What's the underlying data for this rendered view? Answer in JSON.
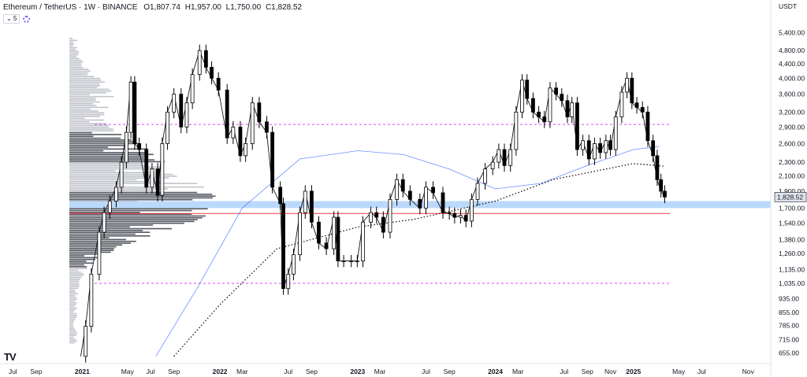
{
  "header": {
    "symbol": "Ethereum / TetherUS · 1W · BINANCE",
    "open_label": "O",
    "open": "1,807.74",
    "high_label": "H",
    "high": "1,957.00",
    "low_label": "L",
    "low": "1,750.00",
    "close_label": "C",
    "close": "1,828.52"
  },
  "controls": {
    "collapse_icon": "chevron-down-icon",
    "indicator_count": "5",
    "settings_icon": "gear-icon"
  },
  "logo": {
    "text": "TV"
  },
  "chart_data": {
    "type": "candlestick",
    "currency": "USDT",
    "last_price": "1,828.52",
    "y_scale": "log",
    "y_ticks": [
      "5,400.00",
      "4,800.00",
      "4,400.00",
      "4,000.00",
      "3,600.00",
      "3,200.00",
      "2,900.00",
      "2,600.00",
      "2,300.00",
      "2,100.00",
      "1,900.00",
      "1,700.00",
      "1,540.00",
      "1,380.00",
      "1,260.00",
      "1,135.00",
      "1,035.00",
      "935.00",
      "855.00",
      "785.00",
      "715.00",
      "655.00"
    ],
    "y_tick_values": [
      5400,
      4800,
      4400,
      4000,
      3600,
      3200,
      2900,
      2600,
      2300,
      2100,
      1900,
      1700,
      1540,
      1380,
      1260,
      1135,
      1035,
      935,
      855,
      785,
      715,
      655
    ],
    "ylim": [
      610,
      6100
    ],
    "x_ticks": [
      {
        "label": "Jul",
        "date": "2020-07-01",
        "bold": false
      },
      {
        "label": "Sep",
        "date": "2020-09-01",
        "bold": false
      },
      {
        "label": "2021",
        "date": "2021-01-01",
        "bold": true
      },
      {
        "label": "May",
        "date": "2021-05-01",
        "bold": false
      },
      {
        "label": "Jul",
        "date": "2021-07-01",
        "bold": false
      },
      {
        "label": "Sep",
        "date": "2021-09-01",
        "bold": false
      },
      {
        "label": "2022",
        "date": "2022-01-01",
        "bold": true
      },
      {
        "label": "Mar",
        "date": "2022-03-01",
        "bold": false
      },
      {
        "label": "Jul",
        "date": "2022-07-01",
        "bold": false
      },
      {
        "label": "Sep",
        "date": "2022-09-01",
        "bold": false
      },
      {
        "label": "2023",
        "date": "2023-01-01",
        "bold": true
      },
      {
        "label": "Mar",
        "date": "2023-03-01",
        "bold": false
      },
      {
        "label": "Jul",
        "date": "2023-07-01",
        "bold": false
      },
      {
        "label": "Sep",
        "date": "2023-09-01",
        "bold": false
      },
      {
        "label": "2024",
        "date": "2024-01-01",
        "bold": true
      },
      {
        "label": "Mar",
        "date": "2024-03-01",
        "bold": false
      },
      {
        "label": "Jul",
        "date": "2024-07-01",
        "bold": false
      },
      {
        "label": "Sep",
        "date": "2024-09-01",
        "bold": false
      },
      {
        "label": "Nov",
        "date": "2024-11-01",
        "bold": false
      },
      {
        "label": "2025",
        "date": "2025-01-01",
        "bold": true
      },
      {
        "label": "May",
        "date": "2025-05-01",
        "bold": false
      },
      {
        "label": "Jul",
        "date": "2025-07-01",
        "bold": false
      },
      {
        "label": "Nov",
        "date": "2025-11-01",
        "bold": false
      }
    ],
    "xlim": [
      "2020-05-28",
      "2025-12-31"
    ],
    "price_series": [
      {
        "date": "2020-12-28",
        "price": 640
      },
      {
        "date": "2021-01-10",
        "price": 780
      },
      {
        "date": "2021-01-25",
        "price": 1100
      },
      {
        "date": "2021-02-15",
        "price": 1450
      },
      {
        "date": "2021-02-28",
        "price": 1650
      },
      {
        "date": "2021-03-15",
        "price": 1780
      },
      {
        "date": "2021-04-01",
        "price": 1950
      },
      {
        "date": "2021-04-15",
        "price": 2300
      },
      {
        "date": "2021-04-28",
        "price": 2800
      },
      {
        "date": "2021-05-10",
        "price": 3900
      },
      {
        "date": "2021-05-20",
        "price": 2600
      },
      {
        "date": "2021-06-01",
        "price": 2500
      },
      {
        "date": "2021-06-20",
        "price": 1950
      },
      {
        "date": "2021-07-05",
        "price": 2200
      },
      {
        "date": "2021-07-20",
        "price": 1850
      },
      {
        "date": "2021-08-01",
        "price": 2600
      },
      {
        "date": "2021-08-15",
        "price": 3200
      },
      {
        "date": "2021-09-01",
        "price": 3600
      },
      {
        "date": "2021-09-20",
        "price": 2900
      },
      {
        "date": "2021-10-05",
        "price": 3400
      },
      {
        "date": "2021-10-20",
        "price": 4100
      },
      {
        "date": "2021-11-08",
        "price": 4800
      },
      {
        "date": "2021-11-25",
        "price": 4300
      },
      {
        "date": "2021-12-10",
        "price": 4000
      },
      {
        "date": "2021-12-28",
        "price": 3700
      },
      {
        "date": "2022-01-20",
        "price": 2700
      },
      {
        "date": "2022-02-05",
        "price": 2900
      },
      {
        "date": "2022-02-24",
        "price": 2400
      },
      {
        "date": "2022-03-10",
        "price": 2600
      },
      {
        "date": "2022-03-28",
        "price": 3400
      },
      {
        "date": "2022-04-15",
        "price": 3000
      },
      {
        "date": "2022-05-05",
        "price": 2800
      },
      {
        "date": "2022-05-20",
        "price": 1950
      },
      {
        "date": "2022-06-10",
        "price": 1750
      },
      {
        "date": "2022-06-18",
        "price": 1000
      },
      {
        "date": "2022-07-01",
        "price": 1100
      },
      {
        "date": "2022-07-15",
        "price": 1250
      },
      {
        "date": "2022-08-01",
        "price": 1650
      },
      {
        "date": "2022-08-15",
        "price": 1900
      },
      {
        "date": "2022-09-01",
        "price": 1550
      },
      {
        "date": "2022-09-20",
        "price": 1350
      },
      {
        "date": "2022-10-10",
        "price": 1300
      },
      {
        "date": "2022-10-30",
        "price": 1600
      },
      {
        "date": "2022-11-10",
        "price": 1200
      },
      {
        "date": "2022-11-25",
        "price": 1200
      },
      {
        "date": "2022-12-15",
        "price": 1200
      },
      {
        "date": "2022-12-31",
        "price": 1200
      },
      {
        "date": "2023-01-15",
        "price": 1550
      },
      {
        "date": "2023-02-05",
        "price": 1650
      },
      {
        "date": "2023-02-20",
        "price": 1600
      },
      {
        "date": "2023-03-10",
        "price": 1450
      },
      {
        "date": "2023-03-28",
        "price": 1800
      },
      {
        "date": "2023-04-15",
        "price": 2050
      },
      {
        "date": "2023-05-01",
        "price": 1900
      },
      {
        "date": "2023-05-20",
        "price": 1800
      },
      {
        "date": "2023-06-15",
        "price": 1700
      },
      {
        "date": "2023-07-01",
        "price": 1950
      },
      {
        "date": "2023-07-20",
        "price": 1880
      },
      {
        "date": "2023-08-15",
        "price": 1650
      },
      {
        "date": "2023-09-01",
        "price": 1640
      },
      {
        "date": "2023-09-15",
        "price": 1600
      },
      {
        "date": "2023-10-01",
        "price": 1620
      },
      {
        "date": "2023-10-15",
        "price": 1560
      },
      {
        "date": "2023-10-30",
        "price": 1800
      },
      {
        "date": "2023-11-15",
        "price": 2000
      },
      {
        "date": "2023-12-05",
        "price": 2200
      },
      {
        "date": "2023-12-25",
        "price": 2300
      },
      {
        "date": "2024-01-10",
        "price": 2500
      },
      {
        "date": "2024-01-25",
        "price": 2250
      },
      {
        "date": "2024-02-10",
        "price": 2500
      },
      {
        "date": "2024-02-25",
        "price": 3200
      },
      {
        "date": "2024-03-12",
        "price": 3950
      },
      {
        "date": "2024-03-25",
        "price": 3500
      },
      {
        "date": "2024-04-10",
        "price": 3200
      },
      {
        "date": "2024-04-25",
        "price": 3100
      },
      {
        "date": "2024-05-10",
        "price": 3000
      },
      {
        "date": "2024-05-25",
        "price": 3750
      },
      {
        "date": "2024-06-10",
        "price": 3600
      },
      {
        "date": "2024-06-25",
        "price": 3450
      },
      {
        "date": "2024-07-10",
        "price": 3100
      },
      {
        "date": "2024-07-22",
        "price": 3400
      },
      {
        "date": "2024-08-05",
        "price": 2500
      },
      {
        "date": "2024-08-20",
        "price": 2650
      },
      {
        "date": "2024-09-05",
        "price": 2350
      },
      {
        "date": "2024-09-20",
        "price": 2600
      },
      {
        "date": "2024-10-05",
        "price": 2450
      },
      {
        "date": "2024-10-20",
        "price": 2650
      },
      {
        "date": "2024-11-01",
        "price": 2500
      },
      {
        "date": "2024-11-15",
        "price": 3100
      },
      {
        "date": "2024-12-01",
        "price": 3650
      },
      {
        "date": "2024-12-15",
        "price": 4000
      },
      {
        "date": "2024-12-28",
        "price": 3400
      },
      {
        "date": "2025-01-10",
        "price": 3300
      },
      {
        "date": "2025-01-25",
        "price": 3200
      },
      {
        "date": "2025-02-08",
        "price": 2650
      },
      {
        "date": "2025-02-22",
        "price": 2400
      },
      {
        "date": "2025-03-05",
        "price": 2050
      },
      {
        "date": "2025-03-15",
        "price": 1900
      },
      {
        "date": "2025-03-25",
        "price": 1828.52
      }
    ],
    "moving_average_200w": [
      {
        "date": "2021-09-01",
        "price": 640
      },
      {
        "date": "2022-01-01",
        "price": 900
      },
      {
        "date": "2022-06-01",
        "price": 1300
      },
      {
        "date": "2023-01-01",
        "price": 1500
      },
      {
        "date": "2023-06-01",
        "price": 1580
      },
      {
        "date": "2024-01-01",
        "price": 1780
      },
      {
        "date": "2024-06-01",
        "price": 2050
      },
      {
        "date": "2025-01-01",
        "price": 2280
      },
      {
        "date": "2025-03-25",
        "price": 2240
      }
    ],
    "moving_average_100w_blue": [
      {
        "date": "2021-07-15",
        "price": 640
      },
      {
        "date": "2021-11-01",
        "price": 1000
      },
      {
        "date": "2022-03-01",
        "price": 1700
      },
      {
        "date": "2022-08-01",
        "price": 2350
      },
      {
        "date": "2023-01-01",
        "price": 2480
      },
      {
        "date": "2023-05-01",
        "price": 2420
      },
      {
        "date": "2023-09-01",
        "price": 2200
      },
      {
        "date": "2024-01-01",
        "price": 1930
      },
      {
        "date": "2024-05-01",
        "price": 2000
      },
      {
        "date": "2024-09-01",
        "price": 2250
      },
      {
        "date": "2025-01-01",
        "price": 2500
      },
      {
        "date": "2025-03-10",
        "price": 2550
      }
    ],
    "horizontal_levels": [
      {
        "price": 2950,
        "style": "dashed",
        "color": "#e040fb"
      },
      {
        "price": 1035,
        "style": "dashed",
        "color": "#e040fb"
      },
      {
        "price": 1640,
        "style": "solid",
        "color": "#f23645"
      }
    ],
    "support_zone": {
      "from": 1700,
      "to": 1780,
      "color": "#bbd9fb"
    }
  },
  "colors": {
    "accent": "#2962ff",
    "up": "#ffffff",
    "down": "#000000",
    "zone": "#bbd9fb",
    "magenta": "#e040fb",
    "red": "#f23645"
  }
}
